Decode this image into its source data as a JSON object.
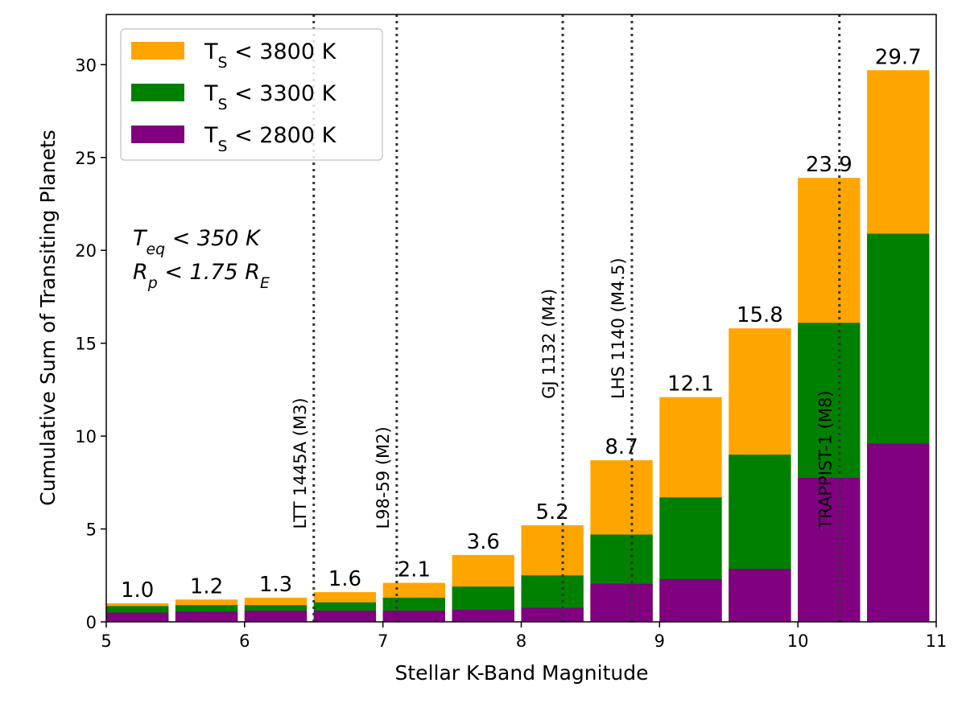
{
  "chart_data": {
    "type": "histogram",
    "xlabel": "Stellar K-Band Magnitude",
    "ylabel": "Cumulative Sum of Transiting Planets",
    "bins": [
      5,
      5.5,
      6,
      6.5,
      7,
      7.5,
      8,
      8.5,
      9,
      9.5,
      10,
      10.5,
      11
    ],
    "series": [
      {
        "name": "T_S < 3800 K",
        "color": "#ffa500",
        "values": [
          1.0,
          1.2,
          1.3,
          1.6,
          2.1,
          3.6,
          5.2,
          8.7,
          12.1,
          15.8,
          23.9,
          29.7
        ],
        "value_labels": [
          "1.0",
          "1.2",
          "1.3",
          "1.6",
          "2.1",
          "3.6",
          "5.2",
          "8.7",
          "12.1",
          "15.8",
          "23.9",
          "29.7"
        ]
      },
      {
        "name": "T_S < 3300 K",
        "color": "#008000",
        "values": [
          0.85,
          0.9,
          0.9,
          1.05,
          1.3,
          1.9,
          2.5,
          4.7,
          6.7,
          9.0,
          16.1,
          20.9
        ]
      },
      {
        "name": "T_S < 2800 K",
        "color": "#800080",
        "values": [
          0.5,
          0.55,
          0.6,
          0.6,
          0.6,
          0.65,
          0.75,
          2.05,
          2.3,
          2.85,
          7.75,
          9.6
        ]
      }
    ],
    "xlim": [
      5,
      11
    ],
    "ylim": [
      0,
      32.7
    ],
    "xticks": [
      5,
      6,
      7,
      8,
      9,
      10,
      11
    ],
    "yticks": [
      0,
      5,
      10,
      15,
      20,
      25,
      30
    ],
    "legend": "upper left",
    "annotations": [
      "T_eq < 350 K",
      "R_p < 1.75 R_E"
    ],
    "reference_lines": [
      {
        "x": 6.5,
        "label": "LTT 1445A (M3)",
        "y": 5
      },
      {
        "x": 7.1,
        "label": "L98-59 (M2)",
        "y": 5
      },
      {
        "x": 8.3,
        "label": "GJ 1132 (M4)",
        "y": 12
      },
      {
        "x": 8.8,
        "label": "LHS 1140 (M4.5)",
        "y": 12
      },
      {
        "x": 10.3,
        "label": "TRAPPIST-1 (M8)",
        "y": 5
      }
    ]
  }
}
